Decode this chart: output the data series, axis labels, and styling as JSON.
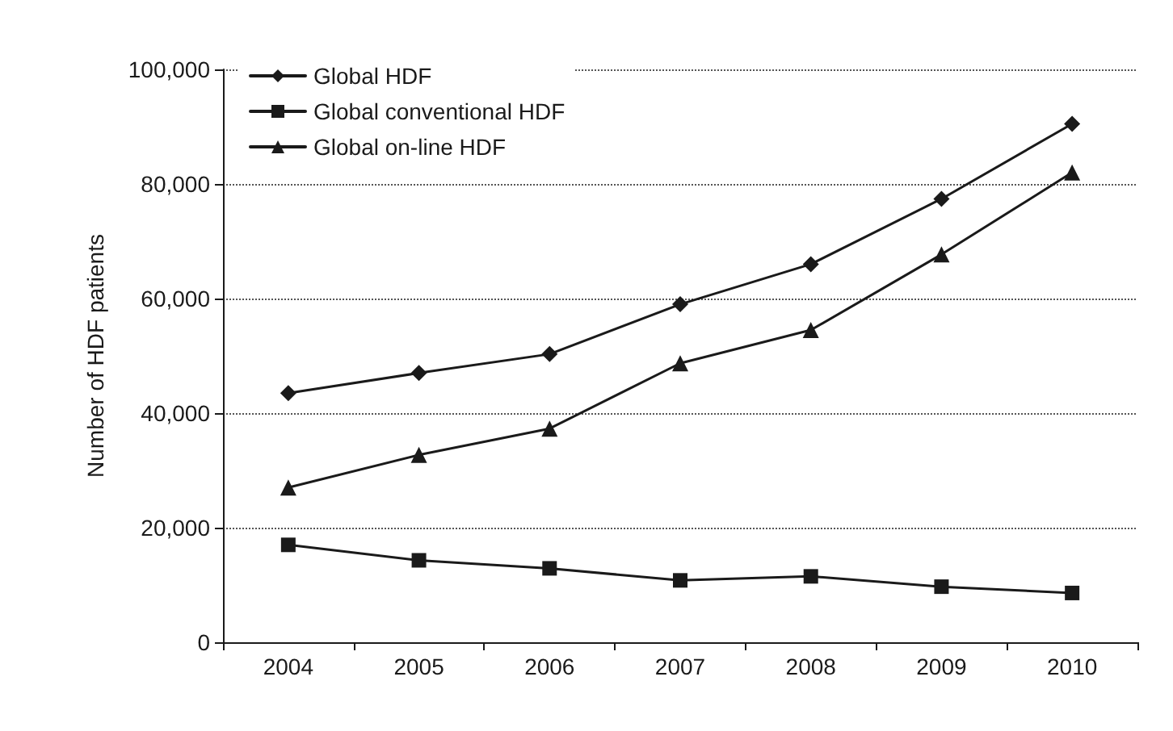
{
  "chart_data": {
    "type": "line",
    "ylabel": "Number of HDF patients",
    "categories": [
      "2004",
      "2005",
      "2006",
      "2007",
      "2008",
      "2009",
      "2010"
    ],
    "series": [
      {
        "name": "Global HDF",
        "color": "#1a1a1a",
        "marker": "diamond",
        "values": [
          43500,
          47000,
          50300,
          59000,
          66000,
          77400,
          90500
        ]
      },
      {
        "name": "Global conventional HDF",
        "color": "#1a1a1a",
        "marker": "square",
        "values": [
          17000,
          14300,
          12900,
          10800,
          11500,
          9700,
          8600
        ]
      },
      {
        "name": "Global on-line HDF",
        "color": "#1a1a1a",
        "marker": "triangle",
        "values": [
          27000,
          32700,
          37300,
          48700,
          54500,
          67700,
          82000
        ]
      }
    ],
    "ylim": [
      0,
      100000
    ],
    "yticks": [
      {
        "value": 0,
        "label": "0"
      },
      {
        "value": 20000,
        "label": "20,000"
      },
      {
        "value": 40000,
        "label": "40,000"
      },
      {
        "value": 60000,
        "label": "60,000"
      },
      {
        "value": 80000,
        "label": "80,000"
      },
      {
        "value": 100000,
        "label": "100,000"
      }
    ],
    "grid": "y",
    "legend": "top left",
    "line_style": "solid"
  }
}
